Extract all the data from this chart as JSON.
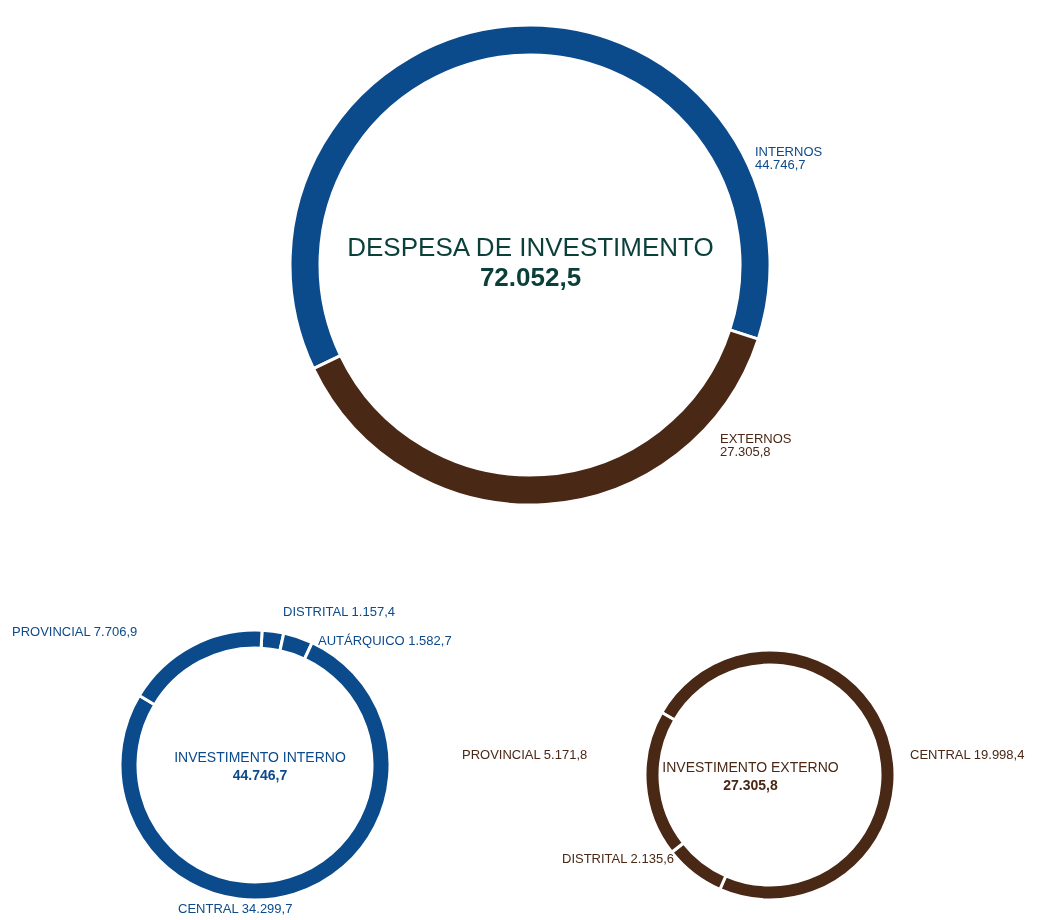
{
  "chart_data": [
    {
      "type": "donut",
      "title": "DESPESA DE INVESTIMENTO",
      "subtitle": "72.052,5",
      "categories": [
        "INTERNOS",
        "EXTERNOS"
      ],
      "values": [
        44746.7,
        27305.8
      ],
      "colors": [
        "#0b4a8b",
        "#4a2816"
      ],
      "value_labels": [
        "44.746,7",
        "27.305,8"
      ]
    },
    {
      "type": "donut",
      "title": "INVESTIMENTO INTERNO",
      "subtitle": "44.746,7",
      "categories": [
        "DISTRITAL",
        "AUTÁRQUICO",
        "CENTRAL",
        "PROVINCIAL"
      ],
      "values": [
        1157.4,
        1582.7,
        34299.7,
        7706.9
      ],
      "colors": [
        "#0b4a8b",
        "#0b4a8b",
        "#0b4a8b",
        "#0b4a8b"
      ],
      "value_labels": [
        "1.157,4",
        "1.582,7",
        "34.299,7",
        "7.706,9"
      ]
    },
    {
      "type": "donut",
      "title": "INVESTIMENTO EXTERNO",
      "subtitle": "27.305,8",
      "categories": [
        "CENTRAL",
        "DISTRITAL",
        "PROVINCIAL"
      ],
      "values": [
        19998.4,
        2135.6,
        5171.8
      ],
      "colors": [
        "#4a2816",
        "#4a2816",
        "#4a2816"
      ],
      "value_labels": [
        "19.998,4",
        "2.135,6",
        "5.171,8"
      ]
    }
  ]
}
